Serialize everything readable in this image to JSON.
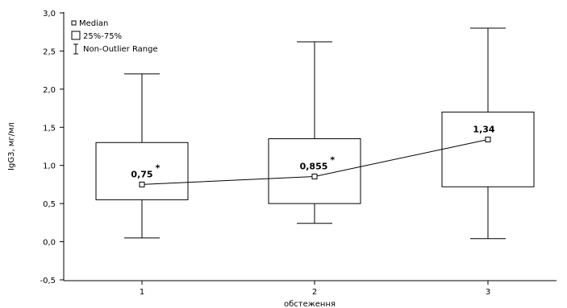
{
  "chart_data": {
    "type": "boxplot",
    "xlabel": "обстеження",
    "ylabel": "IgG3, мг/мл",
    "ylim": [
      -0.5,
      3.0
    ],
    "yticks": [
      "-0,5",
      "0,0",
      "0,5",
      "1,0",
      "1,5",
      "2,0",
      "2,5",
      "3,0"
    ],
    "ytick_values": [
      -0.5,
      0.0,
      0.5,
      1.0,
      1.5,
      2.0,
      2.5,
      3.0
    ],
    "categories": [
      "1",
      "2",
      "3"
    ],
    "median": [
      0.75,
      0.855,
      1.34
    ],
    "q1": [
      0.55,
      0.5,
      0.72
    ],
    "q3": [
      1.3,
      1.35,
      1.7
    ],
    "whisker_low": [
      0.05,
      0.24,
      0.04
    ],
    "whisker_high": [
      2.2,
      2.62,
      2.8
    ],
    "median_labels": [
      "0,75",
      "0,855",
      "1,34"
    ],
    "annotations": [
      "*",
      "*",
      ""
    ],
    "legend": {
      "position": "top-left",
      "items": [
        "Median",
        "25%-75%",
        "Non-Outlier Range"
      ]
    }
  }
}
